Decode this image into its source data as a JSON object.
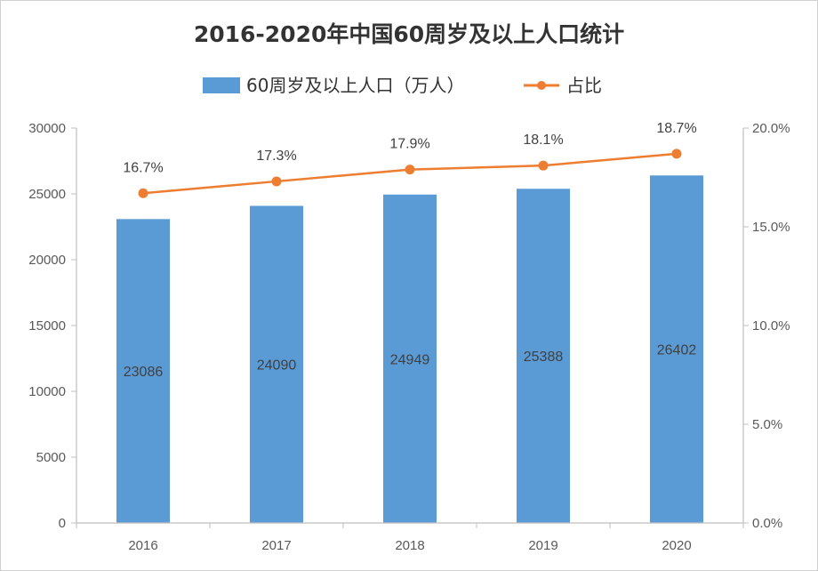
{
  "colors": {
    "bar": "#5b9bd5",
    "line": "#ed7d31",
    "axis": "#bfbfbf",
    "text": "#333333"
  },
  "chart_data": {
    "type": "bar",
    "title": "2016-2020年中国60周岁及以上人口统计",
    "categories": [
      "2016",
      "2017",
      "2018",
      "2019",
      "2020"
    ],
    "series": [
      {
        "name": "60周岁及以上人口（万人）",
        "type": "bar",
        "axis": "left",
        "values": [
          23086,
          24090,
          24949,
          25388,
          26402
        ],
        "labels": [
          "23086",
          "24090",
          "24949",
          "25388",
          "26402"
        ]
      },
      {
        "name": "占比",
        "type": "line",
        "axis": "right",
        "values": [
          16.7,
          17.3,
          17.9,
          18.1,
          18.7
        ],
        "labels": [
          "16.7%",
          "17.3%",
          "17.9%",
          "18.1%",
          "18.7%"
        ]
      }
    ],
    "y_left": {
      "min": 0,
      "max": 30000,
      "ticks": [
        "0",
        "5000",
        "10000",
        "15000",
        "20000",
        "25000",
        "30000"
      ]
    },
    "y_right": {
      "min": 0,
      "max": 20,
      "ticks": [
        "0.0%",
        "5.0%",
        "10.0%",
        "15.0%",
        "20.0%"
      ]
    },
    "legend": "top",
    "grid": false
  }
}
